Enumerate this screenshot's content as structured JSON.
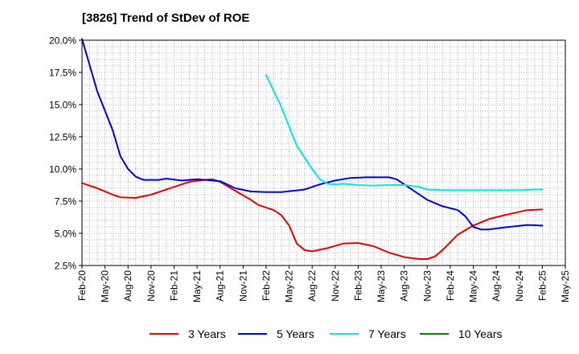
{
  "title": "[3826]  Trend of StDev of ROE",
  "chart_data": {
    "type": "line",
    "title": "[3826]  Trend of StDev of ROE",
    "ylim": [
      2.5,
      20.0
    ],
    "y_ticks": [
      "2.5%",
      "5.0%",
      "7.5%",
      "10.0%",
      "12.5%",
      "15.0%",
      "17.5%",
      "20.0%"
    ],
    "x_ticks": [
      "Feb-20",
      "May-20",
      "Aug-20",
      "Nov-20",
      "Feb-21",
      "May-21",
      "Aug-21",
      "Nov-21",
      "Feb-22",
      "May-22",
      "Aug-22",
      "Nov-22",
      "Feb-23",
      "May-23",
      "Aug-23",
      "Nov-23",
      "Feb-24",
      "May-24",
      "Aug-24",
      "Nov-24",
      "Feb-25",
      "May-25"
    ],
    "grid": true,
    "legend_position": "bottom",
    "series": [
      {
        "name": "3 Years",
        "color": "#dd0000",
        "points": [
          [
            "Feb-20",
            8.9
          ],
          [
            "Apr-20",
            8.5
          ],
          [
            "Jun-20",
            8.0
          ],
          [
            "Jul-20",
            7.8
          ],
          [
            "Sep-20",
            7.75
          ],
          [
            "Nov-20",
            8.0
          ],
          [
            "Jan-21",
            8.4
          ],
          [
            "Mar-21",
            8.8
          ],
          [
            "Apr-21",
            9.0
          ],
          [
            "Jun-21",
            9.15
          ],
          [
            "Jul-21",
            9.2
          ],
          [
            "Aug-21",
            9.0
          ],
          [
            "Oct-21",
            8.3
          ],
          [
            "Dec-21",
            7.6
          ],
          [
            "Jan-22",
            7.2
          ],
          [
            "Mar-22",
            6.8
          ],
          [
            "Apr-22",
            6.4
          ],
          [
            "May-22",
            5.6
          ],
          [
            "Jun-22",
            4.2
          ],
          [
            "Jul-22",
            3.7
          ],
          [
            "Aug-22",
            3.6
          ],
          [
            "Oct-22",
            3.85
          ],
          [
            "Dec-22",
            4.2
          ],
          [
            "Feb-23",
            4.25
          ],
          [
            "Apr-23",
            4.0
          ],
          [
            "Jun-23",
            3.5
          ],
          [
            "Aug-23",
            3.15
          ],
          [
            "Oct-23",
            3.0
          ],
          [
            "Nov-23",
            3.0
          ],
          [
            "Dec-23",
            3.2
          ],
          [
            "Jan-24",
            3.7
          ],
          [
            "Mar-24",
            4.9
          ],
          [
            "May-24",
            5.6
          ],
          [
            "Jul-24",
            6.1
          ],
          [
            "Sep-24",
            6.4
          ],
          [
            "Dec-24",
            6.8
          ],
          [
            "Feb-25",
            6.85
          ]
        ]
      },
      {
        "name": "5 Years",
        "color": "#0000cc",
        "points": [
          [
            "Feb-20",
            20.1
          ],
          [
            "Apr-20",
            16.0
          ],
          [
            "Jun-20",
            13.0
          ],
          [
            "Jul-20",
            11.0
          ],
          [
            "Aug-20",
            10.0
          ],
          [
            "Sep-20",
            9.4
          ],
          [
            "Oct-20",
            9.15
          ],
          [
            "Dec-20",
            9.15
          ],
          [
            "Jan-21",
            9.25
          ],
          [
            "Mar-21",
            9.1
          ],
          [
            "May-21",
            9.2
          ],
          [
            "Aug-21",
            9.05
          ],
          [
            "Oct-21",
            8.5
          ],
          [
            "Dec-21",
            8.25
          ],
          [
            "Feb-22",
            8.2
          ],
          [
            "Apr-22",
            8.2
          ],
          [
            "Jul-22",
            8.4
          ],
          [
            "Sep-22",
            8.8
          ],
          [
            "Nov-22",
            9.1
          ],
          [
            "Jan-23",
            9.3
          ],
          [
            "Mar-23",
            9.35
          ],
          [
            "Jun-23",
            9.35
          ],
          [
            "Jul-23",
            9.2
          ],
          [
            "Sep-23",
            8.4
          ],
          [
            "Nov-23",
            7.6
          ],
          [
            "Jan-24",
            7.1
          ],
          [
            "Mar-24",
            6.8
          ],
          [
            "Apr-24",
            6.3
          ],
          [
            "May-24",
            5.5
          ],
          [
            "Jun-24",
            5.3
          ],
          [
            "Jul-24",
            5.3
          ],
          [
            "Sep-24",
            5.45
          ],
          [
            "Dec-24",
            5.65
          ],
          [
            "Feb-25",
            5.6
          ]
        ]
      },
      {
        "name": "7 Years",
        "color": "#00e5e5",
        "points": [
          [
            "Feb-22",
            17.3
          ],
          [
            "Apr-22",
            14.8
          ],
          [
            "Jun-22",
            11.8
          ],
          [
            "Aug-22",
            10.0
          ],
          [
            "Sep-22",
            9.2
          ],
          [
            "Oct-22",
            8.85
          ],
          [
            "Nov-22",
            8.8
          ],
          [
            "Dec-22",
            8.85
          ],
          [
            "Feb-23",
            8.75
          ],
          [
            "Apr-23",
            8.7
          ],
          [
            "Jun-23",
            8.75
          ],
          [
            "Aug-23",
            8.75
          ],
          [
            "Oct-23",
            8.6
          ],
          [
            "Nov-23",
            8.4
          ],
          [
            "Jan-24",
            8.35
          ],
          [
            "May-24",
            8.35
          ],
          [
            "Nov-24",
            8.35
          ],
          [
            "Jan-25",
            8.4
          ],
          [
            "Feb-25",
            8.4
          ]
        ]
      },
      {
        "name": "10 Years",
        "color": "#008000",
        "points": []
      }
    ]
  }
}
